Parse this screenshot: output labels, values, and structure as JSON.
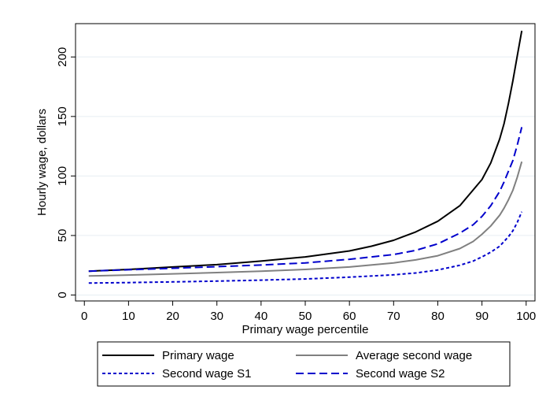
{
  "chart_data": {
    "type": "line",
    "title": "",
    "xlabel": "Primary wage percentile",
    "ylabel": "Hourly wage, dollars",
    "xlim": [
      -2,
      102
    ],
    "ylim": [
      -5,
      228
    ],
    "xticks": [
      0,
      10,
      20,
      30,
      40,
      50,
      60,
      70,
      80,
      90,
      100
    ],
    "yticks": [
      0,
      50,
      100,
      150,
      200
    ],
    "grid": "horizontal",
    "legend_position": "bottom",
    "series": [
      {
        "name": "Primary wage",
        "color": "#000000",
        "dash": "solid",
        "x": [
          1,
          10,
          20,
          30,
          40,
          50,
          60,
          65,
          70,
          75,
          80,
          85,
          90,
          92,
          94,
          95,
          96,
          97,
          98,
          99
        ],
        "y": [
          20,
          21.5,
          23.5,
          25.5,
          28.5,
          32,
          37,
          41,
          46,
          53,
          62,
          75,
          97,
          111,
          131,
          144,
          161,
          180,
          201,
          222
        ]
      },
      {
        "name": "Average second wage",
        "color": "#808080",
        "dash": "solid",
        "x": [
          1,
          10,
          20,
          30,
          40,
          50,
          60,
          70,
          75,
          80,
          85,
          88,
          90,
          92,
          94,
          95,
          96,
          97,
          98,
          99
        ],
        "y": [
          16,
          16.8,
          17.8,
          18.8,
          20,
          21.5,
          23.5,
          27,
          29.5,
          33,
          39,
          45,
          51,
          58,
          67,
          73,
          80,
          88,
          99,
          112
        ]
      },
      {
        "name": "Second wage S1",
        "color": "#0000cc",
        "dash": "short",
        "x": [
          1,
          10,
          20,
          30,
          40,
          50,
          60,
          70,
          75,
          80,
          85,
          88,
          90,
          92,
          94,
          95,
          96,
          97,
          98,
          99
        ],
        "y": [
          10,
          10.4,
          11,
          11.7,
          12.5,
          13.5,
          15,
          17,
          18.5,
          21,
          25,
          28.5,
          32,
          36,
          41,
          45,
          49,
          54,
          61,
          70
        ]
      },
      {
        "name": "Second wage S2",
        "color": "#0000cc",
        "dash": "long",
        "x": [
          1,
          10,
          20,
          30,
          40,
          50,
          60,
          70,
          75,
          80,
          85,
          88,
          90,
          92,
          94,
          95,
          96,
          97,
          98,
          99
        ],
        "y": [
          20,
          21.2,
          22.5,
          23.8,
          25.2,
          27,
          30,
          34,
          37.5,
          43,
          52,
          59,
          66,
          75,
          87,
          95,
          104,
          113,
          126,
          141
        ]
      }
    ],
    "legend": {
      "items": [
        "Primary wage",
        "Average second wage",
        "Second wage S1",
        "Second wage S2"
      ]
    }
  }
}
